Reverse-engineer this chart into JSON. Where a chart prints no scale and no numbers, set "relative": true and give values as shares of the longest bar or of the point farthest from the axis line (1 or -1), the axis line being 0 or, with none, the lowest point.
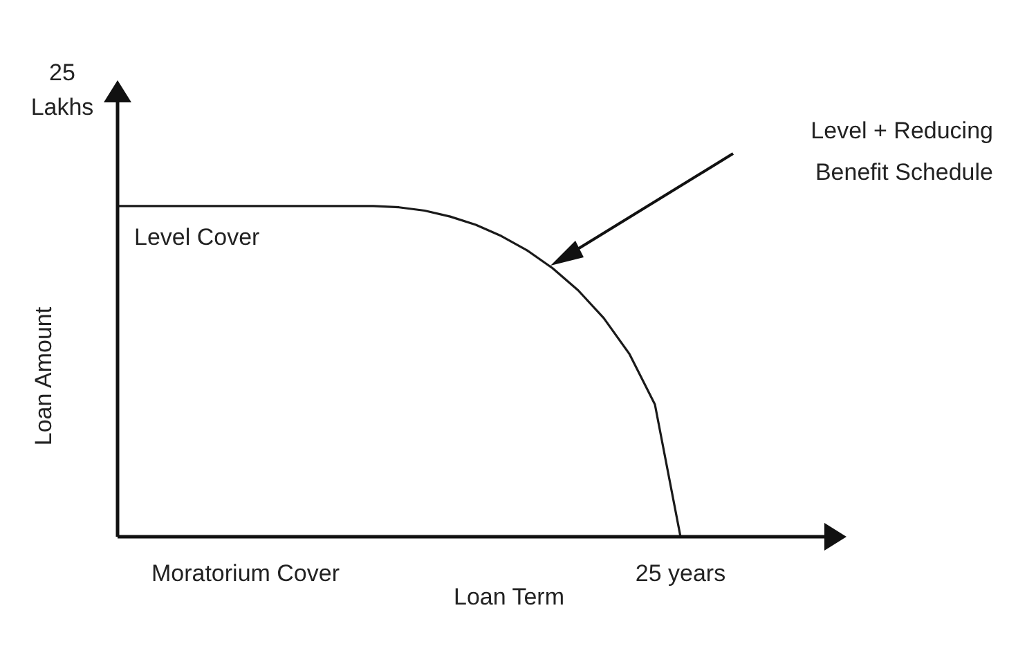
{
  "chart_data": {
    "type": "line",
    "relative": true,
    "xlabel": "Loan Term",
    "ylabel": "Loan Amount",
    "categories": [
      null,
      null,
      null,
      null,
      null,
      "Moratorium Cover",
      null,
      null,
      null,
      null,
      null,
      null,
      null,
      null,
      null,
      null,
      null,
      null,
      null,
      null,
      null,
      null,
      "25 years",
      null,
      null,
      null,
      null,
      null,
      null
    ],
    "series": [
      {
        "color": "#1a1a1a",
        "values": [
          1,
          1,
          1,
          1,
          1,
          1,
          1,
          1,
          1,
          1,
          1,
          0.996,
          0.986,
          0.968,
          0.943,
          0.909,
          0.866,
          0.812,
          0.745,
          0.661,
          0.553,
          0.4,
          0,
          null,
          null,
          null,
          null,
          null,
          null
        ]
      }
    ],
    "annotations": [
      "25 Lakhs",
      "Level Cover",
      "Level + Reducing Benefit Schedule"
    ],
    "grid": false,
    "legend": false,
    "marker": "none",
    "line_style": "solid"
  }
}
